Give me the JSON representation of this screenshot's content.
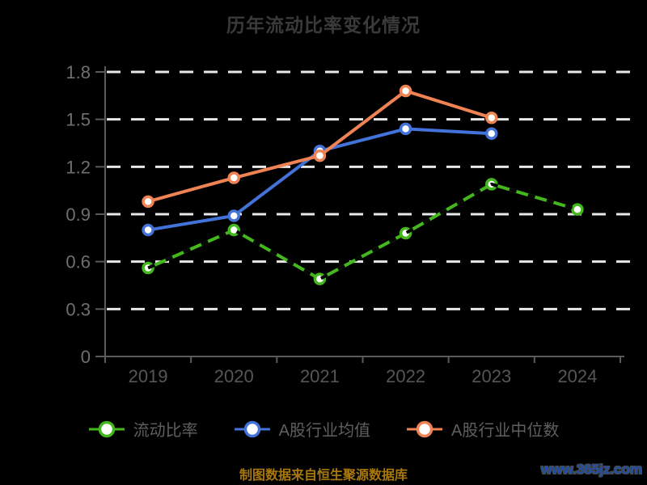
{
  "page": {
    "background": "#000000"
  },
  "chart_data": {
    "type": "line",
    "title": "历年流动比率变化情况",
    "categories": [
      "2019",
      "2020",
      "2021",
      "2022",
      "2023",
      "2024"
    ],
    "series": [
      {
        "name": "流动比率",
        "color": "#45b71e",
        "marker": "circle-white-fill",
        "line_style": "solid-with-black-dash-overlay",
        "values": [
          0.56,
          0.8,
          0.49,
          0.78,
          1.09,
          0.93
        ]
      },
      {
        "name": "A股行业均值",
        "color": "#4372d8",
        "marker": "circle-white-fill",
        "line_style": "solid",
        "values": [
          0.8,
          0.89,
          1.3,
          1.44,
          1.41,
          null
        ]
      },
      {
        "name": "A股行业中位数",
        "color": "#f08354",
        "marker": "circle-white-fill",
        "line_style": "solid",
        "values": [
          0.98,
          1.13,
          1.27,
          1.68,
          1.51,
          null
        ]
      }
    ],
    "ylim": [
      0,
      1.8
    ],
    "yticks": [
      1.8,
      1.5,
      1.2,
      0.9,
      0.6,
      0.3,
      0
    ],
    "grid": "horizontal-dashed-white",
    "grid_color": "#e8e8e8",
    "axis_color": "#5a5a5a",
    "y_label_color": "#6f6f6f",
    "x_label_color": "#565656",
    "legend_position": "bottom-center"
  },
  "footer": {
    "source_text": "制图数据来自恒生聚源数据库",
    "source_color": "#a8780b",
    "watermark": "www.365jz.com",
    "watermark_color": "#1e4fa8"
  }
}
